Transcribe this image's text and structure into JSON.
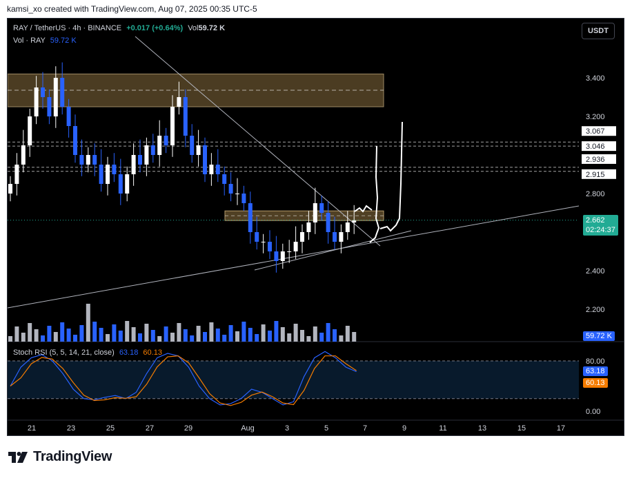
{
  "credit": "kamsi_xo created with TradingView.com, Aug 07, 2025 00:35 UTC-5",
  "header": {
    "symbol": "RAY / TetherUS · 4h · BINANCE",
    "change": "+0.017 (+0.64%)",
    "vol_label": "Vol",
    "vol_value": "59.72 K",
    "vol_line_label": "Vol · RAY",
    "vol_line_value": "59.72 K",
    "currency_button": "USDT"
  },
  "rsi_header": {
    "label": "Stoch RSI (5, 5, 14, 21, close)",
    "k_value": "63.18",
    "d_value": "60.13"
  },
  "price_axis": {
    "ticks": [
      "3.400",
      "3.200",
      "2.800",
      "2.400",
      "2.200"
    ],
    "level_labels": [
      "3.067",
      "3.046",
      "2.936",
      "2.915"
    ],
    "current_price": "2.662",
    "countdown": "02:24:37",
    "volume_tag": "59.72 K"
  },
  "rsi_axis": {
    "ticks": [
      "80.00",
      "0.00"
    ],
    "k_tag": "63.18",
    "d_tag": "60.13"
  },
  "time_axis": [
    "21",
    "23",
    "25",
    "27",
    "29",
    "Aug",
    "3",
    "5",
    "7",
    "9",
    "11",
    "13",
    "15",
    "17"
  ],
  "brand": "TradingView",
  "colors": {
    "up": "#ffffff",
    "down": "#2962ff",
    "zone_fill": "#6b5530",
    "current_price_tag": "#22ab94",
    "rsi_k": "#2962ff",
    "rsi_d": "#f57c00",
    "volume_up": "#b2b5be",
    "volume_down": "#2962ff"
  },
  "chart_data": {
    "type": "candlestick",
    "pair": "RAY/USDT",
    "timeframe": "4h",
    "exchange": "BINANCE",
    "x": [
      "Jul 21",
      "Jul 23",
      "Jul 25",
      "Jul 27",
      "Jul 29",
      "Aug 1",
      "Aug 3",
      "Aug 5",
      "Aug 7",
      "Aug 9",
      "Aug 11",
      "Aug 13",
      "Aug 15",
      "Aug 17"
    ],
    "y_ticks": [
      3.4,
      3.2,
      2.8,
      2.4,
      2.2
    ],
    "ylim": [
      2.12,
      3.48
    ],
    "horizontal_levels": [
      3.067,
      3.046,
      2.936,
      2.915
    ],
    "resistance_zone": [
      3.25,
      3.42
    ],
    "mini_zone": [
      2.66,
      2.71
    ],
    "last_price": 2.662,
    "last_volume": "59.72 K",
    "close_series": [
      2.85,
      2.95,
      3.05,
      3.2,
      3.35,
      3.3,
      3.2,
      3.4,
      3.25,
      3.15,
      3.0,
      2.95,
      3.0,
      2.95,
      2.85,
      2.95,
      2.9,
      2.8,
      2.9,
      3.0,
      2.95,
      3.05,
      3.0,
      3.1,
      3.05,
      3.25,
      3.3,
      3.1,
      3.0,
      3.05,
      2.9,
      2.95,
      2.9,
      2.85,
      2.8,
      2.8,
      2.75,
      2.6,
      2.55,
      2.55,
      2.5,
      2.45,
      2.5,
      2.5,
      2.55,
      2.6,
      2.65,
      2.75,
      2.7,
      2.6,
      2.55,
      2.6,
      2.65,
      2.66
    ],
    "stoch_rsi": {
      "k": 63.18,
      "d": 60.13,
      "bands": [
        80,
        20
      ]
    }
  }
}
